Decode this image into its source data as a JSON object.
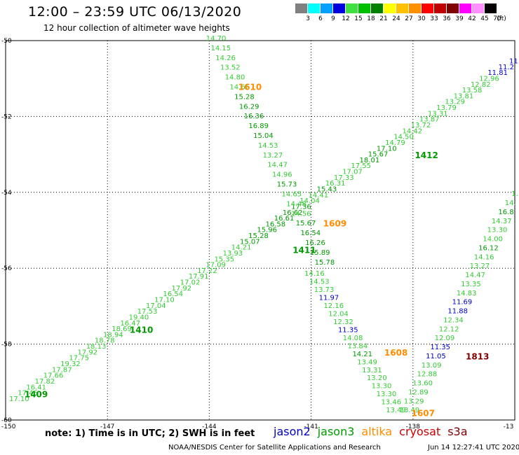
{
  "header": {
    "title": "12:00 – 23:59 UTC 06/13/2020",
    "subtitle": "12 hour collection of altimeter wave heights"
  },
  "colorbar": {
    "swatches": [
      {
        "label": "3",
        "color": "#808080"
      },
      {
        "label": "6",
        "color": "#00ffff"
      },
      {
        "label": "9",
        "color": "#00a0ff"
      },
      {
        "label": "12",
        "color": "#0000e0"
      },
      {
        "label": "15",
        "color": "#40e040"
      },
      {
        "label": "18",
        "color": "#00c000"
      },
      {
        "label": "21",
        "color": "#008000"
      },
      {
        "label": "24",
        "color": "#ffff00"
      },
      {
        "label": "27",
        "color": "#ffc000"
      },
      {
        "label": "30",
        "color": "#ff9000"
      },
      {
        "label": "33",
        "color": "#ff0000"
      },
      {
        "label": "36",
        "color": "#c00000"
      },
      {
        "label": "39",
        "color": "#800000"
      },
      {
        "label": "42",
        "color": "#ff00ff"
      },
      {
        "label": "45",
        "color": "#ff90ff"
      },
      {
        "label": "70",
        "color": "#000000"
      }
    ],
    "unit": "(ft)"
  },
  "axes": {
    "x_ticks": [
      "-150",
      "-147",
      "-144",
      "-141",
      "-138",
      "-13"
    ],
    "y_ticks": [
      "-50",
      "-52",
      "-54",
      "-56",
      "-58",
      "-60"
    ],
    "grid": "dotted"
  },
  "colors": {
    "c14": "#33cc33",
    "c15": "#009900",
    "c11": "#0000cc",
    "orange": "#ff8c00",
    "maroon": "#800000"
  },
  "chart_data": {
    "type": "scatter",
    "xlim": [
      -150,
      -135
    ],
    "ylim": [
      -60,
      -50
    ],
    "pass_labels": [
      {
        "text": "1610",
        "lon": -142.8,
        "lat": -51.3,
        "color": "orange"
      },
      {
        "text": "1412",
        "lon": -137.6,
        "lat": -53.1,
        "color": "c15"
      },
      {
        "text": "1609",
        "lon": -140.3,
        "lat": -54.9,
        "color": "orange"
      },
      {
        "text": "1411",
        "lon": -141.2,
        "lat": -55.6,
        "color": "c15"
      },
      {
        "text": "1410",
        "lon": -146.0,
        "lat": -57.7,
        "color": "c15"
      },
      {
        "text": "1409",
        "lon": -149.1,
        "lat": -59.4,
        "color": "c15"
      },
      {
        "text": "1608",
        "lon": -138.5,
        "lat": -58.3,
        "color": "orange"
      },
      {
        "text": "1813",
        "lon": -136.1,
        "lat": -58.4,
        "color": "maroon"
      },
      {
        "text": "1607",
        "lon": -137.7,
        "lat": -59.9,
        "color": "orange"
      }
    ],
    "tracks": [
      {
        "name": "jason3",
        "start": {
          "lon": -149.6,
          "lat": -59.5
        },
        "end": {
          "lon": -135.0,
          "lat": -50.6
        },
        "values": [
          [
            "17.10",
            "c14"
          ],
          [
            "17.46",
            "c14"
          ],
          [
            "16.41",
            "c14"
          ],
          [
            "17.82",
            "c14"
          ],
          [
            "17.66",
            "c14"
          ],
          [
            "17.87",
            "c14"
          ],
          [
            "19.32",
            "c14"
          ],
          [
            "17.75",
            "c14"
          ],
          [
            "17.92",
            "c14"
          ],
          [
            "18.13",
            "c14"
          ],
          [
            "18.78",
            "c14"
          ],
          [
            "18.94",
            "c14"
          ],
          [
            "18.69",
            "c14"
          ],
          [
            "16.47",
            "c14"
          ],
          [
            "19.40",
            "c14"
          ],
          [
            "17.53",
            "c14"
          ],
          [
            "17.04",
            "c14"
          ],
          [
            "17.10",
            "c14"
          ],
          [
            "16.54",
            "c14"
          ],
          [
            "17.92",
            "c14"
          ],
          [
            "17.02",
            "c14"
          ],
          [
            "17.91",
            "c14"
          ],
          [
            "17.22",
            "c14"
          ],
          [
            "17.09",
            "c14"
          ],
          [
            "15.35",
            "c14"
          ],
          [
            "13.93",
            "c14"
          ],
          [
            "14.21",
            "c14"
          ],
          [
            "15.07",
            "c15"
          ],
          [
            "15.28",
            "c15"
          ],
          [
            "15.96",
            "c15"
          ],
          [
            "16.58",
            "c15"
          ],
          [
            "16.61",
            "c15"
          ],
          [
            "16.62",
            "c15"
          ],
          [
            "17.36",
            "c15"
          ],
          [
            "14.04",
            "c14"
          ],
          [
            "14.41",
            "c14"
          ],
          [
            "15.43",
            "c15"
          ],
          [
            "16.31",
            "c14"
          ],
          [
            "17.33",
            "c14"
          ],
          [
            "17.07",
            "c14"
          ],
          [
            "17.55",
            "c14"
          ],
          [
            "18.01",
            "c15"
          ],
          [
            "15.67",
            "c15"
          ],
          [
            "17.10",
            "c15"
          ],
          [
            "14.79",
            "c14"
          ],
          [
            "14.50",
            "c14"
          ],
          [
            "14.42",
            "c14"
          ],
          [
            "13.72",
            "c14"
          ],
          [
            "13.87",
            "c14"
          ],
          [
            "13.31",
            "c14"
          ],
          [
            "13.79",
            "c14"
          ],
          [
            "13.29",
            "c14"
          ],
          [
            "13.81",
            "c14"
          ],
          [
            "13.58",
            "c14"
          ],
          [
            "12.82",
            "c14"
          ],
          [
            "12.96",
            "c14"
          ],
          [
            "11.81",
            "c11"
          ],
          [
            "11.2",
            "c11"
          ],
          [
            "11.",
            "c11"
          ]
        ]
      },
      {
        "name": "altika_1610",
        "start": {
          "lon": -143.8,
          "lat": -50.0
        },
        "end": {
          "lon": -140.6,
          "lat": -55.9
        },
        "values": [
          [
            "14.70",
            "c14"
          ],
          [
            "14.15",
            "c14"
          ],
          [
            "14.26",
            "c14"
          ],
          [
            "13.52",
            "c14"
          ],
          [
            "14.80",
            "c14"
          ],
          [
            "14.66",
            "c14"
          ],
          [
            "15.28",
            "c15"
          ],
          [
            "16.29",
            "c15"
          ],
          [
            "16.36",
            "c15"
          ],
          [
            "16.89",
            "c15"
          ],
          [
            "15.04",
            "c15"
          ],
          [
            "14.53",
            "c14"
          ],
          [
            "13.27",
            "c14"
          ],
          [
            "14.47",
            "c14"
          ],
          [
            "14.96",
            "c14"
          ],
          [
            "15.73",
            "c15"
          ],
          [
            "14.65",
            "c14"
          ],
          [
            "14.48",
            "c14"
          ],
          [
            "14.56",
            "c14"
          ],
          [
            "15.67",
            "c15"
          ],
          [
            "16.54",
            "c15"
          ],
          [
            "16.26",
            "c15"
          ],
          [
            "15.89",
            "c15"
          ],
          [
            "15.78",
            "c15"
          ]
        ]
      },
      {
        "name": "altika_1608",
        "start": {
          "lon": -140.9,
          "lat": -56.2
        },
        "end": {
          "lon": -138.5,
          "lat": -59.8
        },
        "values": [
          [
            "14.16",
            "c14"
          ],
          [
            "14.53",
            "c14"
          ],
          [
            "13.73",
            "c14"
          ],
          [
            "11.97",
            "c11"
          ],
          [
            "12.16",
            "c14"
          ],
          [
            "12.04",
            "c14"
          ],
          [
            "12.32",
            "c14"
          ],
          [
            "11.35",
            "c11"
          ],
          [
            "14.08",
            "c14"
          ],
          [
            "13.84",
            "c14"
          ],
          [
            "14.21",
            "c15"
          ],
          [
            "13.49",
            "c14"
          ],
          [
            "13.31",
            "c14"
          ],
          [
            "13.20",
            "c14"
          ],
          [
            "13.30",
            "c14"
          ],
          [
            "13.30",
            "c14"
          ],
          [
            "13.46",
            "c14"
          ],
          [
            "13.49",
            "c14"
          ]
        ]
      },
      {
        "name": "altika_1607",
        "start": {
          "lon": -135.0,
          "lat": -54.1
        },
        "end": {
          "lon": -138.1,
          "lat": -59.8
        },
        "values": [
          [
            "1.",
            "c14"
          ],
          [
            "14.",
            "c14"
          ],
          [
            "16.8",
            "c15"
          ],
          [
            "14.37",
            "c14"
          ],
          [
            "13.30",
            "c14"
          ],
          [
            "14.00",
            "c14"
          ],
          [
            "16.12",
            "c15"
          ],
          [
            "14.16",
            "c14"
          ],
          [
            "13.27",
            "c14"
          ],
          [
            "14.47",
            "c14"
          ],
          [
            "13.35",
            "c14"
          ],
          [
            "14.83",
            "c14"
          ],
          [
            "11.69",
            "c11"
          ],
          [
            "11.88",
            "c11"
          ],
          [
            "12.34",
            "c14"
          ],
          [
            "12.12",
            "c14"
          ],
          [
            "12.09",
            "c14"
          ],
          [
            "11.35",
            "c11"
          ],
          [
            "11.05",
            "c11"
          ],
          [
            "13.09",
            "c14"
          ],
          [
            "12.88",
            "c14"
          ],
          [
            "13.60",
            "c14"
          ],
          [
            "12.89",
            "c14"
          ],
          [
            "13.29",
            "c14"
          ],
          [
            "13.49",
            "c14"
          ]
        ]
      }
    ]
  },
  "footer": {
    "note": "note: 1) Time is in UTC; 2) SWH is in feet",
    "legend": [
      {
        "label": "jason2",
        "color": "#0000cc"
      },
      {
        "label": "jason3",
        "color": "#009900"
      },
      {
        "label": "altika",
        "color": "#ff8c00"
      },
      {
        "label": "cryosat",
        "color": "#cc0000"
      },
      {
        "label": "s3a",
        "color": "#800000"
      }
    ],
    "credit": "NOAA/NESDIS Center for Satellite Applications and Research",
    "timestamp": "Jun 14 12:27:41 UTC 2020"
  }
}
